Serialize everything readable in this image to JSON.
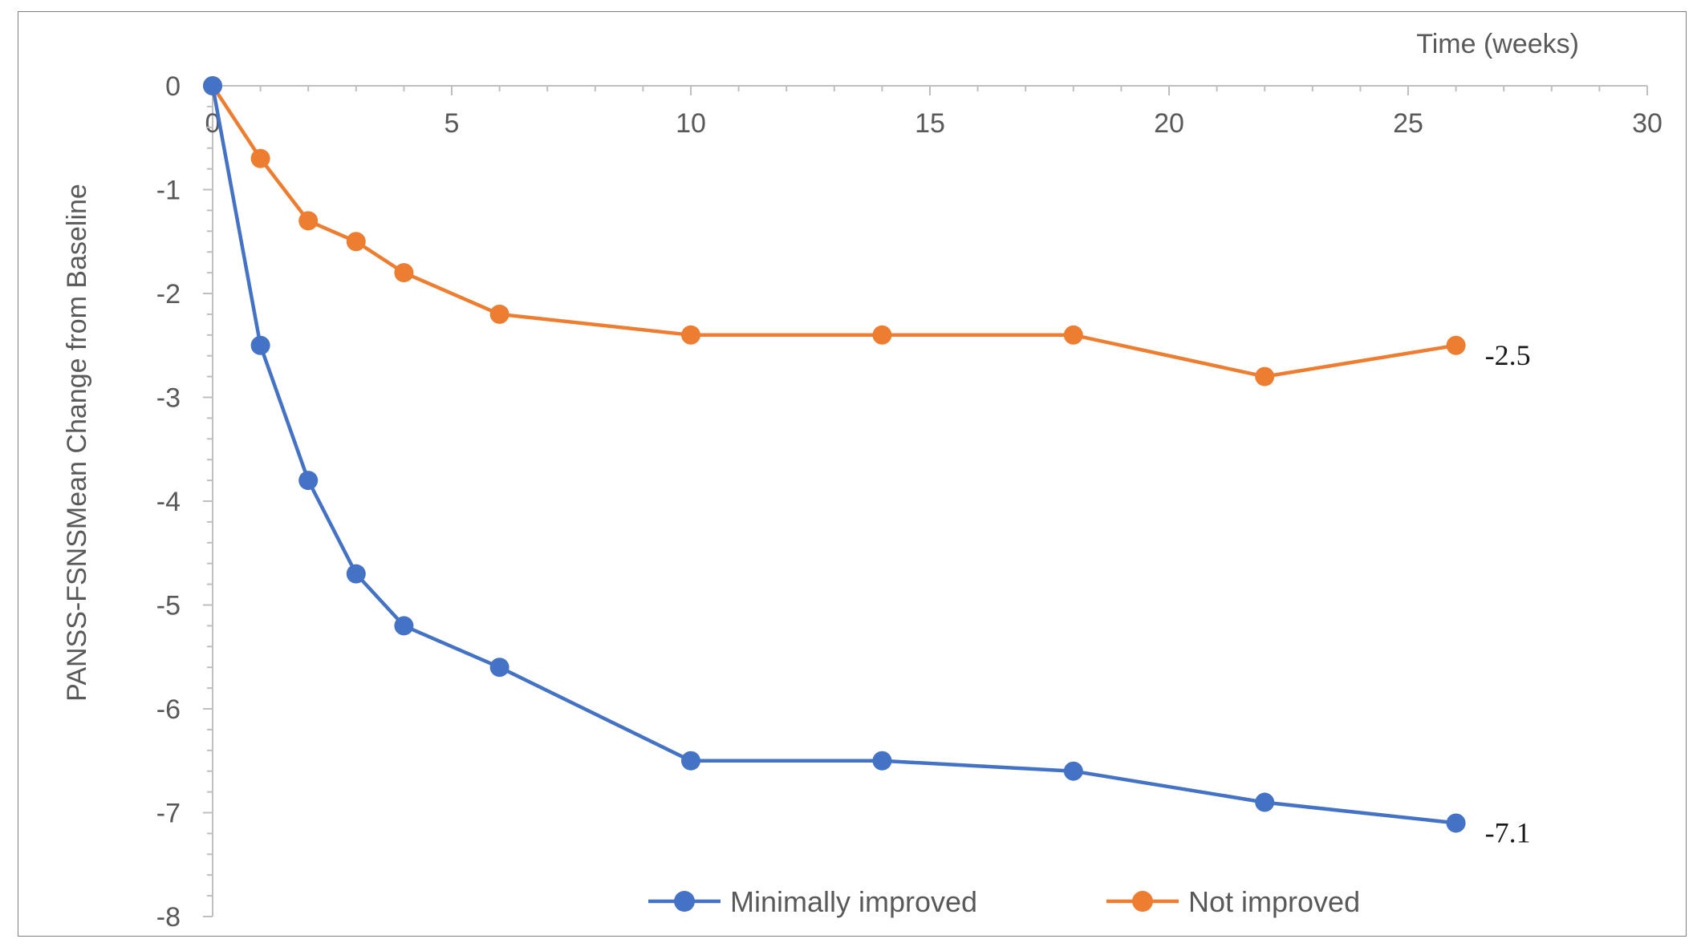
{
  "chart_data": {
    "type": "line",
    "xlabel": "Time (weeks)",
    "ylabel": "PANSS-FSNSMean Change  from Baseline",
    "xlim": [
      0,
      30
    ],
    "ylim": [
      -8,
      0
    ],
    "x_ticks": [
      0,
      5,
      10,
      15,
      20,
      25,
      30
    ],
    "y_ticks": [
      0,
      -1,
      -2,
      -3,
      -4,
      -5,
      -6,
      -7,
      -8
    ],
    "grid": false,
    "legend_position": "bottom",
    "series": [
      {
        "name": "Minimally improved",
        "color": "#4472c4",
        "x": [
          0,
          1,
          2,
          3,
          4,
          6,
          10,
          14,
          18,
          22,
          26
        ],
        "y": [
          0,
          -2.5,
          -3.8,
          -4.7,
          -5.2,
          -5.6,
          -6.5,
          -6.5,
          -6.6,
          -6.9,
          -7.1
        ],
        "end_label": "-7.1"
      },
      {
        "name": "Not improved",
        "color": "#ed7d31",
        "x": [
          0,
          1,
          2,
          3,
          4,
          6,
          10,
          14,
          18,
          22,
          26
        ],
        "y": [
          0,
          -0.7,
          -1.3,
          -1.5,
          -1.8,
          -2.2,
          -2.4,
          -2.4,
          -2.4,
          -2.8,
          -2.5
        ],
        "end_label": "-2.5"
      }
    ]
  }
}
